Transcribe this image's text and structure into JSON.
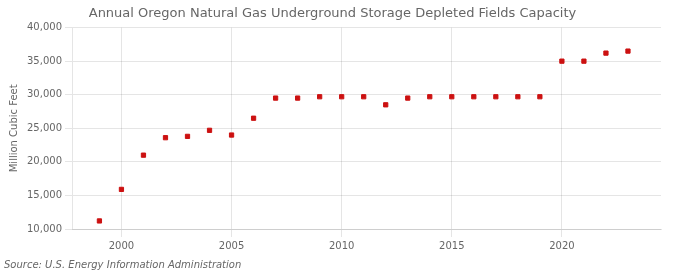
{
  "chart_data": {
    "type": "scatter",
    "title": "Annual Oregon Natural Gas Underground Storage Depleted Fields Capacity",
    "ylabel": "Million Cubic Feet",
    "source": "Source: U.S. Energy Information Administration",
    "color": "#cc1111",
    "marker": "square",
    "grid": true,
    "xlim": [
      1997.8,
      2024.5
    ],
    "xticks": [
      2000,
      2005,
      2010,
      2015,
      2020
    ],
    "ylim": [
      10000,
      40000
    ],
    "yticks": [
      {
        "value": 10000,
        "label": "10,000"
      },
      {
        "value": 15000,
        "label": "15,000"
      },
      {
        "value": 20000,
        "label": "20,000"
      },
      {
        "value": 25000,
        "label": "25,000"
      },
      {
        "value": 30000,
        "label": "30,000"
      },
      {
        "value": 35000,
        "label": "35,000"
      },
      {
        "value": 40000,
        "label": "40,000"
      }
    ],
    "x": [
      1999,
      2000,
      2001,
      2002,
      2003,
      2004,
      2005,
      2006,
      2007,
      2008,
      2009,
      2010,
      2011,
      2012,
      2013,
      2014,
      2015,
      2016,
      2017,
      2018,
      2019,
      2020,
      2021,
      2022,
      2023
    ],
    "values": [
      11200,
      15900,
      21000,
      23600,
      23800,
      24700,
      24000,
      26500,
      29500,
      29500,
      29700,
      29700,
      29700,
      28500,
      29500,
      29700,
      29700,
      29700,
      29700,
      29700,
      29700,
      35000,
      35000,
      36200,
      36500
    ]
  }
}
